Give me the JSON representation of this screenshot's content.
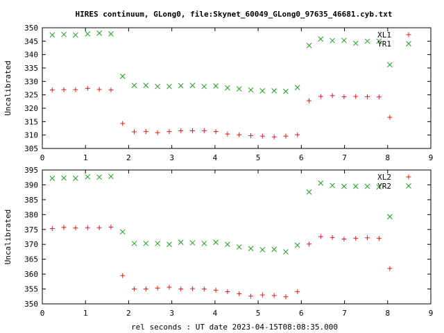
{
  "title": "HIRES continuum, GLong0, file:Skynet_60049_GLong0_97635_46681.cyb.txt",
  "xlabel": "rel seconds : UT date 2023-04-15T08:08:35.000",
  "colors": {
    "red": "#e31a1c",
    "green": "#1a9e1a",
    "axis": "#000000"
  },
  "chart_data": [
    {
      "type": "scatter",
      "title": "HIRES continuum, GLong0, file:Skynet_60049_GLong0_97635_46681.cyb.txt",
      "xlabel": "",
      "ylabel": "Uncalibrated",
      "xlim": [
        0,
        9
      ],
      "ylim": [
        305,
        350
      ],
      "xticks": [
        "0",
        "1",
        "2",
        "3",
        "4",
        "5",
        "6",
        "7",
        "8",
        "9"
      ],
      "yticks": [
        "305",
        "310",
        "315",
        "320",
        "325",
        "330",
        "335",
        "340",
        "345",
        "350"
      ],
      "legend_position": "top-right",
      "series": [
        {
          "name": "XL1",
          "marker": "plus",
          "color": "#e31a1c",
          "x": [
            0.23,
            0.5,
            0.77,
            1.05,
            1.32,
            1.59,
            1.86,
            2.13,
            2.4,
            2.67,
            2.94,
            3.21,
            3.48,
            3.75,
            4.02,
            4.29,
            4.56,
            4.83,
            5.1,
            5.37,
            5.64,
            5.91,
            6.18,
            6.45,
            6.72,
            6.99,
            7.26,
            7.53,
            7.8,
            8.05
          ],
          "y": [
            326.8,
            326.9,
            326.9,
            327.4,
            327.0,
            326.8,
            314.3,
            311.2,
            311.3,
            310.9,
            311.3,
            311.6,
            311.6,
            311.6,
            311.3,
            310.4,
            310.1,
            309.8,
            309.6,
            309.3,
            309.6,
            310.1,
            322.8,
            324.4,
            324.7,
            324.3,
            324.4,
            324.3,
            324.2,
            316.6
          ]
        },
        {
          "name": "YR1",
          "marker": "cross",
          "color": "#1a9e1a",
          "x": [
            0.23,
            0.5,
            0.77,
            1.05,
            1.32,
            1.59,
            1.86,
            2.13,
            2.4,
            2.67,
            2.94,
            3.21,
            3.48,
            3.75,
            4.02,
            4.29,
            4.56,
            4.83,
            5.1,
            5.37,
            5.64,
            5.91,
            6.18,
            6.45,
            6.72,
            6.99,
            7.26,
            7.53,
            7.8,
            8.05
          ],
          "y": [
            347.3,
            347.5,
            347.3,
            347.7,
            348.0,
            347.7,
            331.9,
            328.5,
            328.5,
            328.1,
            328.1,
            328.4,
            328.5,
            328.1,
            328.3,
            327.6,
            327.2,
            326.8,
            326.5,
            326.5,
            326.3,
            327.7,
            343.4,
            345.8,
            345.2,
            345.3,
            344.2,
            345.0,
            345.0,
            336.2
          ]
        }
      ]
    },
    {
      "type": "scatter",
      "xlabel": "rel seconds : UT date 2023-04-15T08:08:35.000",
      "ylabel": "Uncalibrated",
      "xlim": [
        0,
        9
      ],
      "ylim": [
        350,
        395
      ],
      "xticks": [
        "0",
        "1",
        "2",
        "3",
        "4",
        "5",
        "6",
        "7",
        "8",
        "9"
      ],
      "yticks": [
        "350",
        "355",
        "360",
        "365",
        "370",
        "375",
        "380",
        "385",
        "390",
        "395"
      ],
      "legend_position": "top-right",
      "series": [
        {
          "name": "XL2",
          "marker": "plus",
          "color": "#e31a1c",
          "x": [
            0.23,
            0.5,
            0.77,
            1.05,
            1.32,
            1.59,
            1.86,
            2.13,
            2.4,
            2.67,
            2.94,
            3.21,
            3.48,
            3.75,
            4.02,
            4.29,
            4.56,
            4.83,
            5.1,
            5.37,
            5.64,
            5.91,
            6.18,
            6.45,
            6.72,
            6.99,
            7.26,
            7.53,
            7.8,
            8.05
          ],
          "y": [
            375.3,
            375.7,
            375.5,
            375.6,
            375.6,
            375.8,
            359.5,
            355.0,
            355.0,
            355.3,
            355.6,
            355.0,
            355.1,
            355.0,
            354.6,
            354.1,
            353.4,
            352.6,
            353.0,
            352.8,
            352.4,
            354.1,
            370.1,
            372.6,
            372.3,
            371.8,
            372.0,
            372.2,
            372.0,
            361.9
          ]
        },
        {
          "name": "YR2",
          "marker": "cross",
          "color": "#1a9e1a",
          "x": [
            0.23,
            0.5,
            0.77,
            1.05,
            1.32,
            1.59,
            1.86,
            2.13,
            2.4,
            2.67,
            2.94,
            3.21,
            3.48,
            3.75,
            4.02,
            4.29,
            4.56,
            4.83,
            5.1,
            5.37,
            5.64,
            5.91,
            6.18,
            6.45,
            6.72,
            6.99,
            7.26,
            7.53,
            7.8,
            8.05
          ],
          "y": [
            392.2,
            392.3,
            392.2,
            392.7,
            392.6,
            392.8,
            374.2,
            370.3,
            370.3,
            370.3,
            370.0,
            370.7,
            370.5,
            370.3,
            370.7,
            370.0,
            369.1,
            368.6,
            368.2,
            368.3,
            367.5,
            369.7,
            387.6,
            390.6,
            389.8,
            389.5,
            389.5,
            389.5,
            389.3,
            379.3
          ]
        }
      ]
    }
  ]
}
